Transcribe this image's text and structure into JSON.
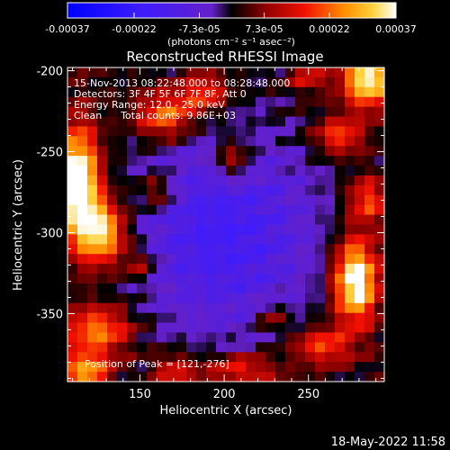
{
  "chart_data": {
    "type": "heatmap",
    "title": "Reconstructed RHESSI Image",
    "xlabel": "Heliocentric X (arcsec)",
    "ylabel": "Heliocentric Y (arcsec)",
    "xlim": [
      107,
      295
    ],
    "ylim": [
      -392,
      -198
    ],
    "xticks": [
      150,
      200,
      250
    ],
    "yticks": [
      -200,
      -250,
      -300,
      -350
    ],
    "grid": false,
    "colorbar": {
      "placement": "top",
      "range": [
        -0.00037,
        0.00037
      ],
      "tick_values": [
        -0.00037,
        -0.00022,
        -7.3e-05,
        7.3e-05,
        0.00022,
        0.00037
      ],
      "tick_labels": [
        "-0.00037",
        "-0.00022",
        "-7.3e-05",
        "7.3e-05",
        "0.00022",
        "0.00037"
      ],
      "units_label": "(photons cm⁻² s⁻¹ asec⁻²)"
    },
    "info_lines": [
      "15-Nov-2013 08:22:48.000 to 08:28:48.000",
      "Detectors: 3F 4F 5F 6F 7F 8F, Att 0",
      "Energy Range: 12.0 - 25.0 keV",
      "Clean      Total counts: 9.86E+03"
    ],
    "peak_label": "Position of Peak = [121,-276]",
    "peak": [
      121,
      -276
    ],
    "image_grid": {
      "cols": 32,
      "rows": 32
    },
    "blobs": [
      {
        "x": 113,
        "y": -270,
        "sx": 9,
        "sy": 24,
        "amp": 1.0
      },
      {
        "x": 128,
        "y": -300,
        "sx": 10,
        "sy": 14,
        "amp": 0.75
      },
      {
        "x": 125,
        "y": -360,
        "sx": 14,
        "sy": 10,
        "amp": 0.55
      },
      {
        "x": 118,
        "y": -385,
        "sx": 10,
        "sy": 8,
        "amp": 0.6
      },
      {
        "x": 165,
        "y": -228,
        "sx": 12,
        "sy": 10,
        "amp": 0.55
      },
      {
        "x": 188,
        "y": -214,
        "sx": 10,
        "sy": 8,
        "amp": 0.45
      },
      {
        "x": 205,
        "y": -255,
        "sx": 8,
        "sy": 10,
        "amp": 0.4
      },
      {
        "x": 160,
        "y": -275,
        "sx": 8,
        "sy": 8,
        "amp": 0.35
      },
      {
        "x": 150,
        "y": -320,
        "sx": 7,
        "sy": 7,
        "amp": 0.3
      },
      {
        "x": 285,
        "y": -205,
        "sx": 10,
        "sy": 12,
        "amp": 0.85
      },
      {
        "x": 268,
        "y": -240,
        "sx": 10,
        "sy": 8,
        "amp": 0.45
      },
      {
        "x": 285,
        "y": -280,
        "sx": 8,
        "sy": 10,
        "amp": 0.45
      },
      {
        "x": 278,
        "y": -330,
        "sx": 9,
        "sy": 18,
        "amp": 0.95
      },
      {
        "x": 258,
        "y": -370,
        "sx": 12,
        "sy": 8,
        "amp": 0.45
      },
      {
        "x": 210,
        "y": -385,
        "sx": 16,
        "sy": 7,
        "amp": 0.4
      },
      {
        "x": 170,
        "y": -385,
        "sx": 9,
        "sy": 7,
        "amp": 0.35
      },
      {
        "x": 250,
        "y": -205,
        "sx": 8,
        "sy": 6,
        "amp": 0.3
      },
      {
        "x": 228,
        "y": -352,
        "sx": 6,
        "sy": 6,
        "amp": 0.3
      },
      {
        "x": 200,
        "y": -300,
        "sx": 40,
        "sy": 45,
        "amp": -0.45
      }
    ]
  },
  "footer": {
    "timestamp": "18-May-2022 11:58"
  }
}
